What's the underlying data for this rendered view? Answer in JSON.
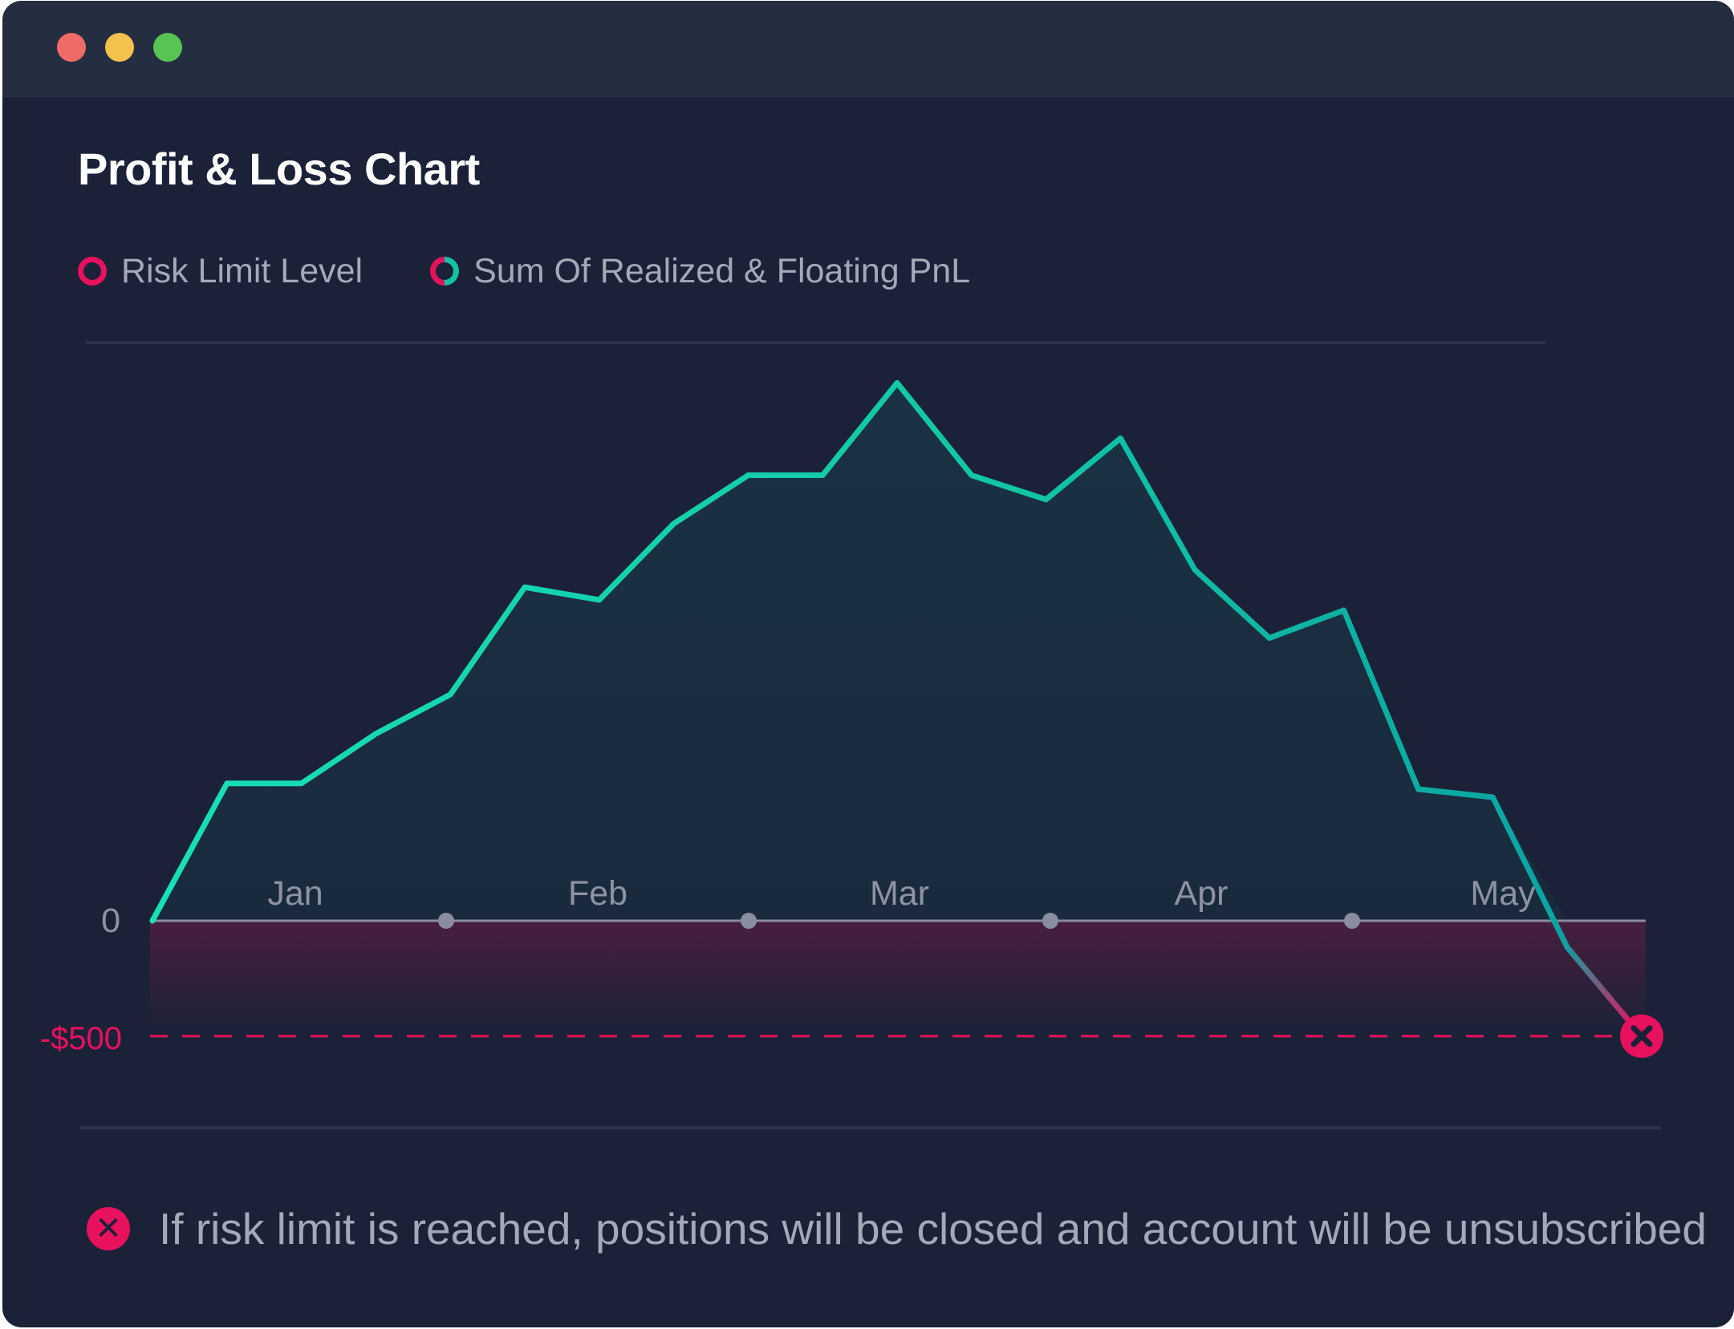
{
  "window": {
    "controls": [
      "close",
      "minimize",
      "maximize"
    ]
  },
  "title": "Profit & Loss Chart",
  "legend": [
    {
      "label": "Risk Limit Level",
      "color": "#e8115e"
    },
    {
      "label": "Sum Of Realized & Floating PnL",
      "color": "#11c4a6"
    }
  ],
  "footer": {
    "icon": "close-circle-icon",
    "text": "If risk limit is reached, positions will be closed and account will be unsubscribed"
  },
  "colors": {
    "background": "#1b2237",
    "titlebar": "#252d41",
    "pnl_line": "#11c4a6",
    "risk": "#e8115e",
    "zero_line": "#8a8ca0"
  },
  "chart_data": {
    "type": "area",
    "x_labels": [
      "Jan",
      "Feb",
      "Mar",
      "Apr",
      "May"
    ],
    "y_labels": [
      "0",
      "-$500"
    ],
    "risk_limit": -500,
    "series": [
      {
        "values": [
          0,
          595,
          595,
          810,
          980,
          1445,
          1390,
          1720,
          1930,
          1930,
          2330,
          1930,
          1825,
          2090,
          1520,
          1225,
          1345,
          570,
          535,
          -115,
          -500
        ]
      }
    ]
  }
}
